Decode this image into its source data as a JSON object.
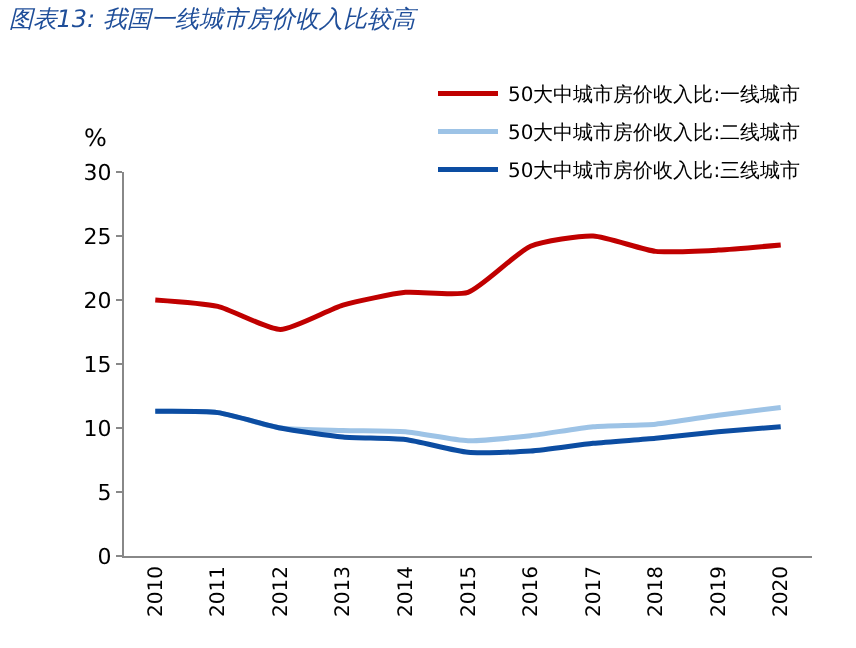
{
  "chart_data": {
    "type": "line",
    "title": "图表13: 我国一线城市房价收入比较高",
    "ylabel": "%",
    "categories": [
      "2010",
      "2011",
      "2012",
      "2013",
      "2014",
      "2015",
      "2016",
      "2017",
      "2018",
      "2019",
      "2020"
    ],
    "series": [
      {
        "name": "50大中城市房价收入比:一线城市",
        "color": "#c00000",
        "values": [
          20.0,
          19.5,
          17.7,
          19.6,
          20.6,
          20.6,
          24.2,
          25.0,
          23.8,
          23.9,
          24.3
        ]
      },
      {
        "name": "50大中城市房价收入比:二线城市",
        "color": "#9dc3e6",
        "values": [
          11.3,
          11.2,
          10.0,
          9.8,
          9.7,
          9.0,
          9.4,
          10.1,
          10.3,
          11.0,
          11.6
        ]
      },
      {
        "name": "50大中城市房价收入比:三线城市",
        "color": "#0c4da2",
        "values": [
          11.3,
          11.2,
          10.0,
          9.3,
          9.1,
          8.1,
          8.2,
          8.8,
          9.2,
          9.7,
          10.1
        ]
      }
    ],
    "ylim": [
      0,
      30
    ],
    "yticks": [
      0,
      5,
      10,
      15,
      20,
      25,
      30
    ],
    "legend": "top right",
    "marker": "none",
    "line_style": "solid"
  }
}
